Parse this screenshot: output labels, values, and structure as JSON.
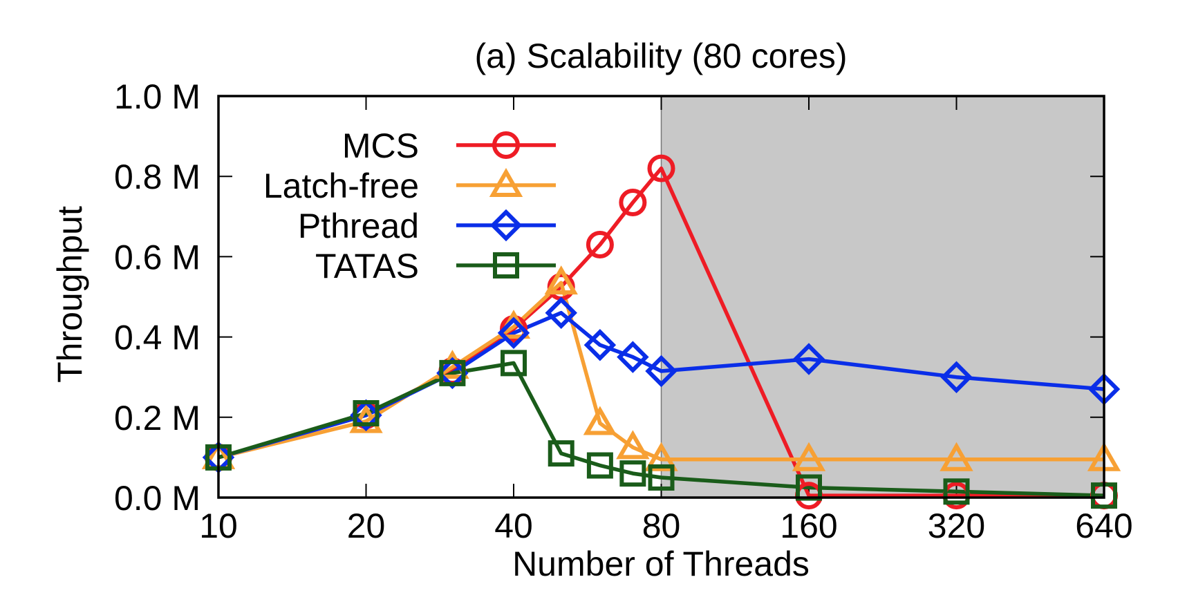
{
  "chart_data": {
    "type": "line",
    "title": "(a) Scalability (80 cores)",
    "xlabel": "Number of Threads",
    "ylabel": "Throughput",
    "x_tick_labels": [
      "10",
      "20",
      "40",
      "80",
      "160",
      "320",
      "640"
    ],
    "y_tick_labels": [
      "0.0 M",
      "0.2 M",
      "0.4 M",
      "0.6 M",
      "0.8 M",
      "1.0 M"
    ],
    "x_scale": "log2",
    "xlim": [
      10,
      640
    ],
    "ylim": [
      0,
      1.0
    ],
    "y_unit": "M",
    "grid": false,
    "legend_position": "top-left",
    "shaded_region": {
      "x_from": 80,
      "x_to": 640,
      "color": "#c8c8c8"
    },
    "series": [
      {
        "name": "MCS",
        "color": "#ee1c25",
        "marker": "circle",
        "x": [
          10,
          20,
          30,
          40,
          50,
          60,
          70,
          80,
          160,
          320,
          640
        ],
        "y": [
          0.1,
          0.205,
          0.315,
          0.42,
          0.525,
          0.63,
          0.735,
          0.82,
          0.005,
          0.005,
          0.005
        ]
      },
      {
        "name": "Latch-free",
        "color": "#f7a034",
        "marker": "triangle",
        "x": [
          10,
          20,
          30,
          40,
          50,
          60,
          70,
          80,
          160,
          320,
          640
        ],
        "y": [
          0.1,
          0.19,
          0.325,
          0.425,
          0.535,
          0.185,
          0.125,
          0.095,
          0.095,
          0.095,
          0.095
        ]
      },
      {
        "name": "Pthread",
        "color": "#0a2ee8",
        "marker": "diamond",
        "x": [
          10,
          20,
          30,
          40,
          50,
          60,
          70,
          80,
          160,
          320,
          640
        ],
        "y": [
          0.1,
          0.205,
          0.31,
          0.41,
          0.46,
          0.38,
          0.35,
          0.315,
          0.345,
          0.3,
          0.27
        ]
      },
      {
        "name": "TATAS",
        "color": "#1a5c1a",
        "marker": "square",
        "x": [
          10,
          20,
          30,
          40,
          50,
          60,
          70,
          80,
          160,
          320,
          640
        ],
        "y": [
          0.1,
          0.21,
          0.31,
          0.335,
          0.11,
          0.08,
          0.06,
          0.05,
          0.025,
          0.015,
          0.005
        ]
      }
    ]
  }
}
